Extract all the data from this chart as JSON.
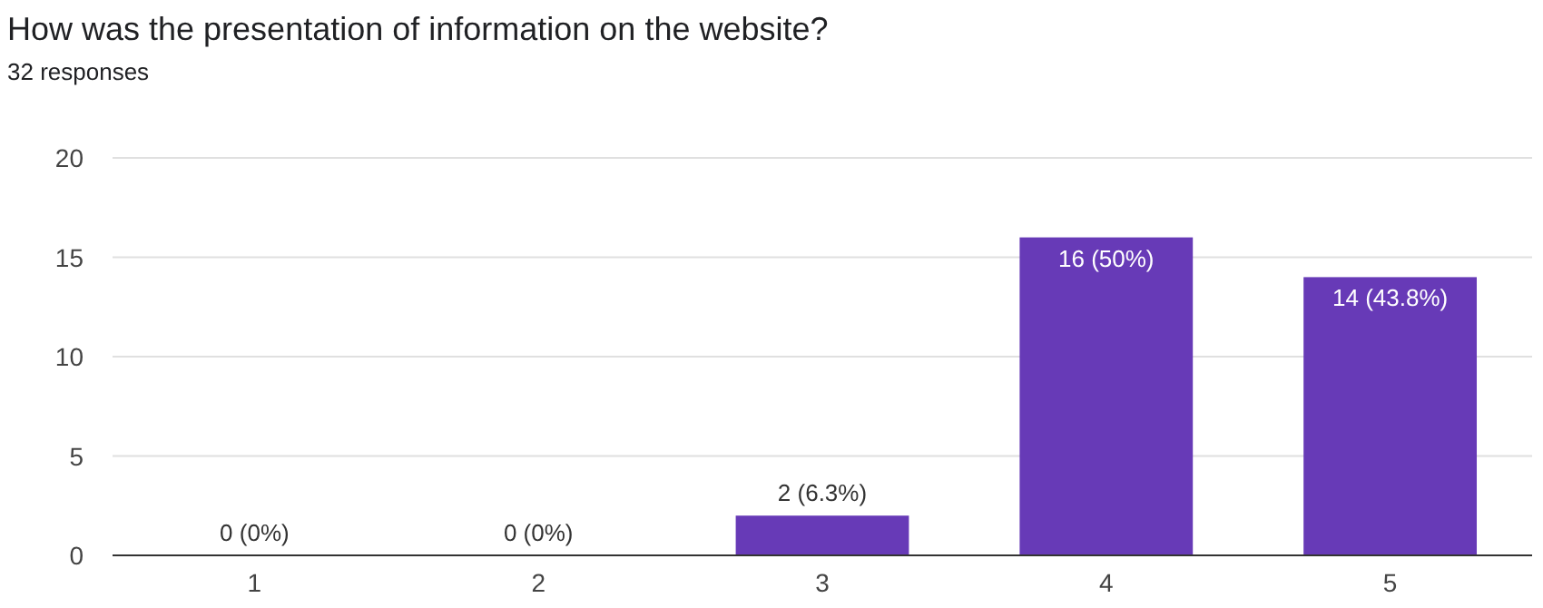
{
  "chart_data": {
    "type": "bar",
    "title": "How was the presentation of information on the website?",
    "subtitle": "32 responses",
    "categories": [
      "1",
      "2",
      "3",
      "4",
      "5"
    ],
    "values": [
      0,
      0,
      2,
      16,
      14
    ],
    "value_labels": [
      "0 (0%)",
      "0 (0%)",
      "2 (6.3%)",
      "16 (50%)",
      "14 (43.8%)"
    ],
    "color": "#673ab7",
    "ylim": [
      0,
      20
    ],
    "yticks": [
      0,
      5,
      10,
      15,
      20
    ],
    "grid": "y"
  }
}
